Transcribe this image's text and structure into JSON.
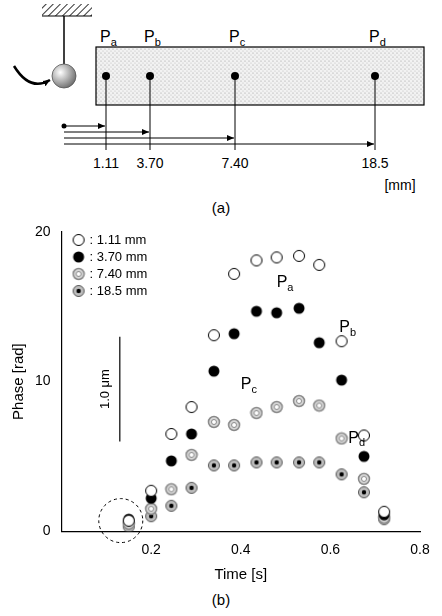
{
  "panel_a": {
    "label": "(a)",
    "points": [
      "Pa",
      "Pb",
      "Pc",
      "Pd"
    ],
    "distances": [
      "1.11",
      "3.70",
      "7.40",
      "18.5"
    ],
    "unit": "[mm]"
  },
  "chart_data": {
    "type": "scatter",
    "panel_label": "(b)",
    "x_label": "Time [s]",
    "y_label": "Phase [rad]",
    "xlim": [
      0,
      0.8
    ],
    "xticks": [
      0.2,
      0.4,
      0.6,
      0.8
    ],
    "ylim": [
      0,
      20
    ],
    "yticks": [
      0,
      10,
      20
    ],
    "grid": false,
    "legend": "upper left",
    "x": [
      0.15,
      0.2,
      0.245,
      0.29,
      0.34,
      0.385,
      0.435,
      0.48,
      0.53,
      0.575,
      0.625,
      0.675,
      0.72
    ],
    "series": [
      {
        "name": ": 1.11 mm",
        "color": "#000000",
        "marker": "open_circle",
        "values": [
          0.7,
          2.7,
          6.5,
          8.3,
          13.1,
          17.2,
          18.1,
          18.3,
          18.4,
          17.8,
          12.7,
          6.4,
          1.3
        ]
      },
      {
        "name": ": 3.70 mm",
        "color": "#000000",
        "marker": "filled_circle",
        "values": [
          0.8,
          2.2,
          4.7,
          6.5,
          10.7,
          13.2,
          14.7,
          14.6,
          14.9,
          12.6,
          10.1,
          5.0,
          1.1
        ]
      },
      {
        "name": ": 7.40 mm",
        "color": "#888888",
        "marker": "double_circle",
        "values": [
          0.5,
          1.5,
          2.8,
          5.1,
          7.3,
          7.1,
          7.9,
          8.3,
          8.7,
          8.4,
          6.2,
          3.5,
          0.9
        ]
      },
      {
        "name": ": 18.5 mm",
        "color": "#555555",
        "marker": "dotted_circle",
        "values": [
          0.3,
          1.0,
          1.7,
          2.9,
          4.4,
          4.4,
          4.6,
          4.6,
          4.6,
          4.6,
          3.8,
          2.6,
          0.8
        ]
      }
    ],
    "annotations": [
      {
        "text": "Pa",
        "x": 0.48,
        "y": 16.6
      },
      {
        "text": "Pb",
        "x": 0.62,
        "y": 13.6
      },
      {
        "text": "Pc",
        "x": 0.4,
        "y": 9.8
      },
      {
        "text": "Pd",
        "x": 0.64,
        "y": 6.2
      }
    ],
    "scale_bar": {
      "label": "1.0 μm",
      "x": 0.13,
      "y": [
        6.0,
        13.0
      ]
    }
  }
}
